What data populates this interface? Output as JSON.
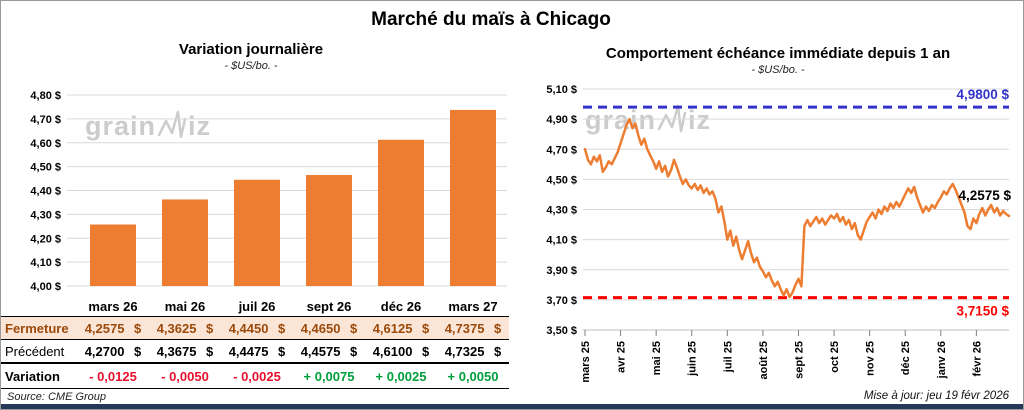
{
  "title": "Marché du maïs à Chicago",
  "watermark": {
    "pre": "grain",
    "post": "iz"
  },
  "colors": {
    "orange": "#ED7D31",
    "blue": "#3333CC",
    "red": "#FF0000",
    "neg": "#E8112D",
    "pos": "#00A03C",
    "brown": "#9C4A0B",
    "peach": "#FBE5D6",
    "grid": "#D9D9D9",
    "watermark": "#CCCCCC"
  },
  "chart_data": [
    {
      "type": "bar",
      "title": "Variation journalière",
      "subtitle": "- $US/bo. -",
      "categories": [
        "mars 26",
        "mai 26",
        "juil 26",
        "sept 26",
        "déc 26",
        "mars 27"
      ],
      "values": [
        4.2575,
        4.3625,
        4.445,
        4.465,
        4.6125,
        4.7375
      ],
      "ylim": [
        4.0,
        4.8
      ],
      "ytick_step": 0.1,
      "grid": true,
      "legend": "none"
    },
    {
      "type": "line",
      "title": "Comportement échéance immédiate depuis 1 an",
      "subtitle": "- $US/bo. -",
      "x_labels": [
        "mars 25",
        "avr 25",
        "mai 25",
        "juin 25",
        "juil 25",
        "août 25",
        "sept 25",
        "oct 25",
        "nov 25",
        "déc 25",
        "janv 26",
        "févr 26"
      ],
      "values": [
        4.7,
        4.63,
        4.6,
        4.65,
        4.62,
        4.66,
        4.55,
        4.58,
        4.62,
        4.6,
        4.64,
        4.68,
        4.74,
        4.8,
        4.86,
        4.9,
        4.84,
        4.87,
        4.79,
        4.73,
        4.77,
        4.7,
        4.66,
        4.62,
        4.57,
        4.62,
        4.55,
        4.59,
        4.52,
        4.56,
        4.63,
        4.58,
        4.52,
        4.47,
        4.5,
        4.46,
        4.44,
        4.47,
        4.43,
        4.46,
        4.41,
        4.44,
        4.4,
        4.42,
        4.37,
        4.28,
        4.32,
        4.22,
        4.1,
        4.16,
        4.06,
        4.12,
        4.03,
        3.97,
        4.03,
        4.09,
        4.01,
        3.95,
        3.98,
        3.92,
        3.89,
        3.85,
        3.88,
        3.83,
        3.79,
        3.82,
        3.77,
        3.73,
        3.77,
        3.72,
        3.75,
        3.8,
        3.84,
        3.79,
        4.19,
        4.23,
        4.19,
        4.22,
        4.25,
        4.21,
        4.24,
        4.2,
        4.23,
        4.26,
        4.24,
        4.27,
        4.22,
        4.25,
        4.2,
        4.23,
        4.17,
        4.21,
        4.13,
        4.1,
        4.16,
        4.22,
        4.25,
        4.28,
        4.24,
        4.3,
        4.27,
        4.32,
        4.29,
        4.34,
        4.31,
        4.35,
        4.32,
        4.36,
        4.4,
        4.44,
        4.41,
        4.45,
        4.38,
        4.33,
        4.28,
        4.32,
        4.29,
        4.33,
        4.31,
        4.35,
        4.38,
        4.42,
        4.4,
        4.44,
        4.47,
        4.43,
        4.38,
        4.33,
        4.28,
        4.19,
        4.17,
        4.24,
        4.21,
        4.27,
        4.31,
        4.26,
        4.3,
        4.33,
        4.28,
        4.31,
        4.26,
        4.29,
        4.27,
        4.2575
      ],
      "ylim": [
        3.5,
        5.1
      ],
      "ytick_step": 0.2,
      "grid": true,
      "high_line": {
        "value": 4.98,
        "label": "4,9800 $"
      },
      "low_line": {
        "value": 3.715,
        "label": "3,7150 $"
      },
      "last_label": {
        "value": 4.2575,
        "label": "4,2575 $"
      }
    }
  ],
  "table": {
    "columns": [
      "mars 26",
      "mai 26",
      "juil 26",
      "sept 26",
      "déc 26",
      "mars 27"
    ],
    "rows": [
      {
        "label": "Fermeture",
        "values": [
          "4,2575 $",
          "4,3625 $",
          "4,4450 $",
          "4,4650 $",
          "4,6125 $",
          "4,7375 $"
        ]
      },
      {
        "label": "Précédent",
        "values": [
          "4,2700 $",
          "4,3675 $",
          "4,4475 $",
          "4,4575 $",
          "4,6100 $",
          "4,7325 $"
        ]
      },
      {
        "label": "Variation",
        "values": [
          "- 0,0125",
          "- 0,0050",
          "- 0,0025",
          "+ 0,0075",
          "+ 0,0025",
          "+ 0,0050"
        ],
        "signs": [
          "neg",
          "neg",
          "neg",
          "pos",
          "pos",
          "pos"
        ]
      }
    ]
  },
  "footer": {
    "source": "Source: CME Group",
    "updated": "Mise à jour: jeu 19 févr 2026"
  }
}
